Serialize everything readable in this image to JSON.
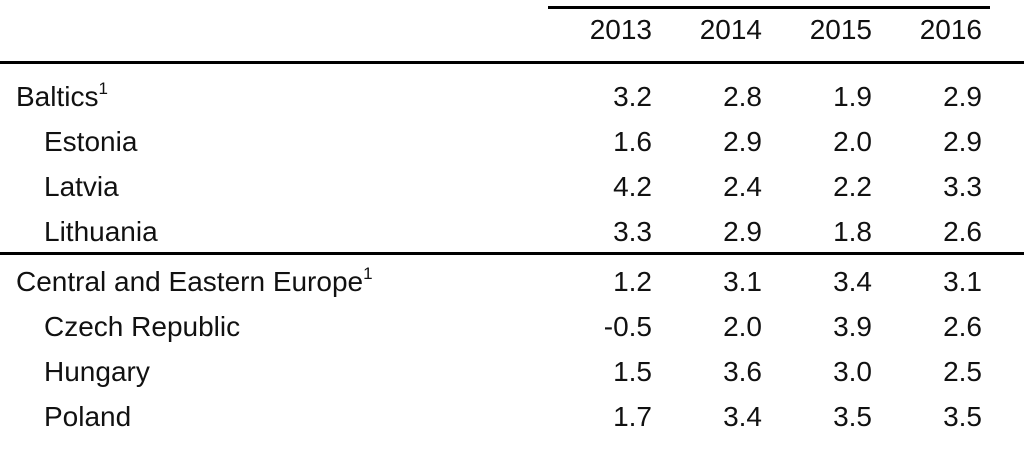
{
  "table": {
    "header": [
      "2013",
      "2014",
      "2015",
      "2016"
    ],
    "groups": [
      {
        "name": "Baltics",
        "note": "1",
        "values": [
          "3.2",
          "2.8",
          "1.9",
          "2.9"
        ],
        "rows": [
          {
            "name": "Estonia",
            "values": [
              "1.6",
              "2.9",
              "2.0",
              "2.9"
            ]
          },
          {
            "name": "Latvia",
            "values": [
              "4.2",
              "2.4",
              "2.2",
              "3.3"
            ]
          },
          {
            "name": "Lithuania",
            "values": [
              "3.3",
              "2.9",
              "1.8",
              "2.6"
            ]
          }
        ]
      },
      {
        "name": "Central and Eastern Europe",
        "note": "1",
        "values": [
          "1.2",
          "3.1",
          "3.4",
          "3.1"
        ],
        "rows": [
          {
            "name": "Czech Republic",
            "values": [
              "-0.5",
              "2.0",
              "3.9",
              "2.6"
            ]
          },
          {
            "name": "Hungary",
            "values": [
              "1.5",
              "3.6",
              "3.0",
              "2.5"
            ]
          },
          {
            "name": "Poland",
            "values": [
              "1.7",
              "3.4",
              "3.5",
              "3.5"
            ]
          }
        ]
      }
    ]
  }
}
